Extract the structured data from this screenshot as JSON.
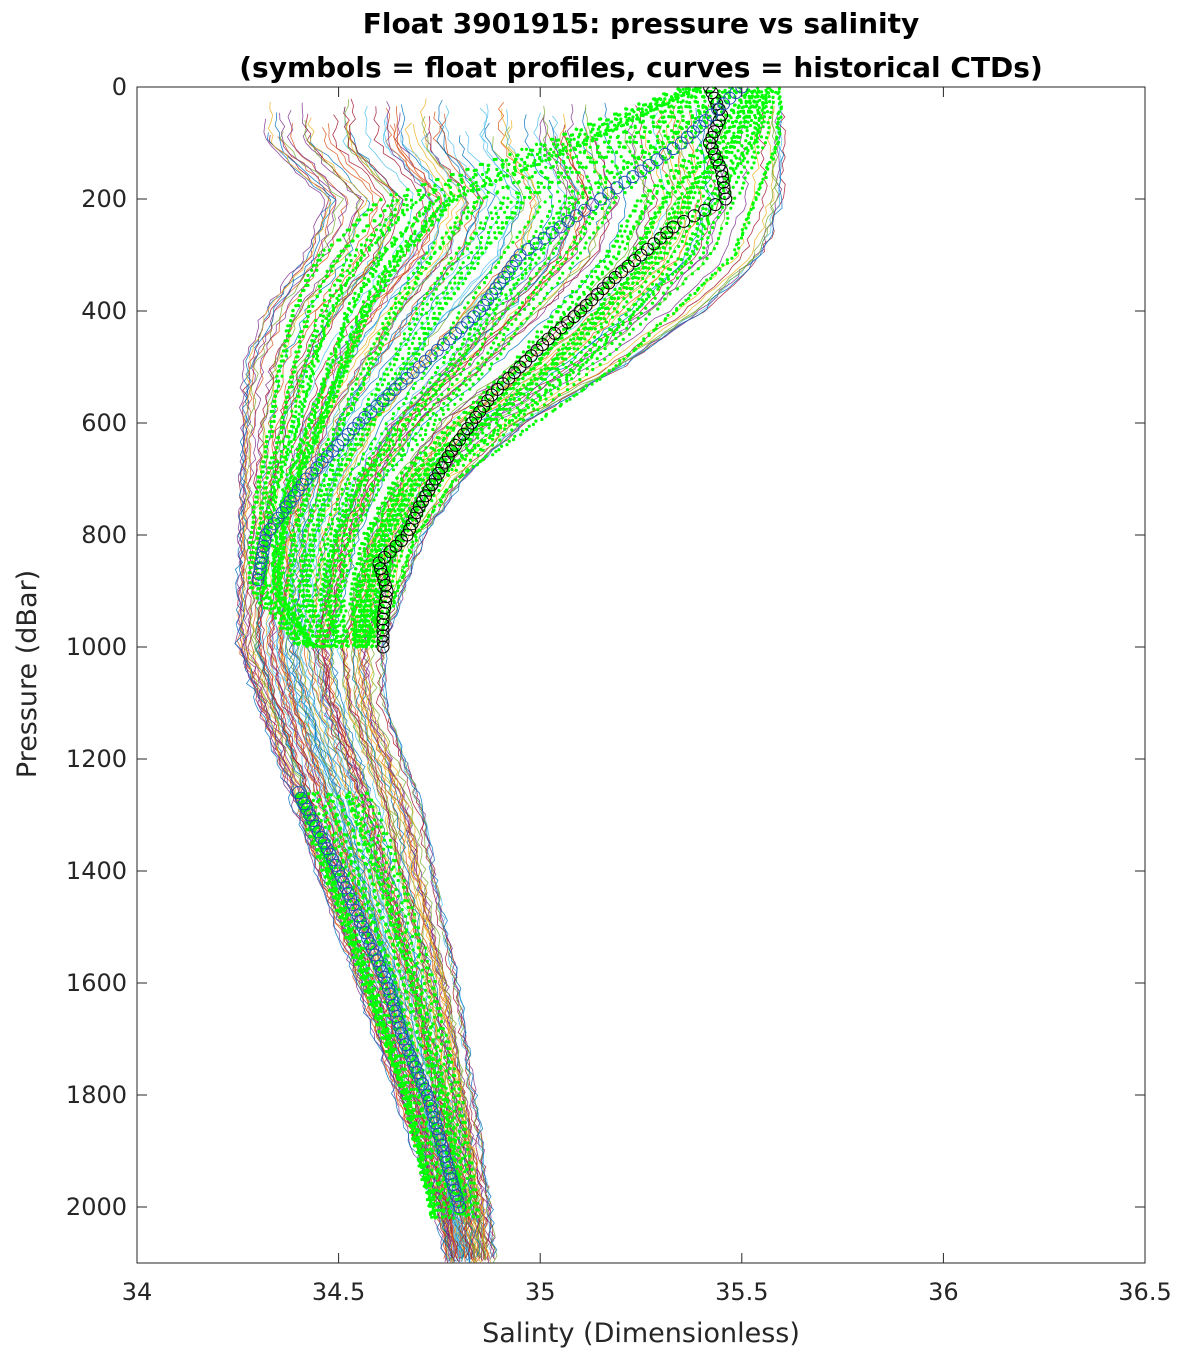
{
  "chart_data": {
    "type": "line",
    "title": "Float 3901915: pressure vs salinity",
    "subtitle": "(symbols = float profiles, curves = historical CTDs)",
    "xlabel": "Salinty (Dimensionless)",
    "ylabel": "Pressure (dBar)",
    "xlim": [
      34,
      36.5
    ],
    "ylim": [
      0,
      2100
    ],
    "y_reversed": true,
    "grid": false,
    "x_ticks": [
      34,
      34.5,
      35,
      35.5,
      36,
      36.5
    ],
    "x_tick_labels": [
      "34",
      "34.5",
      "35",
      "35.5",
      "36",
      "36.5"
    ],
    "y_ticks": [
      0,
      200,
      400,
      600,
      800,
      1000,
      1200,
      1400,
      1600,
      1800,
      2000
    ],
    "y_tick_labels": [
      "0",
      "200",
      "400",
      "600",
      "800",
      "1000",
      "1200",
      "1400",
      "1600",
      "1800",
      "2000"
    ],
    "colors": {
      "float_points": "#00ff00",
      "float_marker_edge": "#000000",
      "axis": "#262626",
      "ctd_palette": [
        "#0072bd",
        "#d95319",
        "#edb120",
        "#7e2f8e",
        "#77ac30",
        "#4dbeee",
        "#a2142f"
      ]
    },
    "ctd_envelope": {
      "pressure": [
        0,
        100,
        200,
        300,
        400,
        500,
        600,
        700,
        800,
        900,
        1000,
        1100,
        1200,
        1300,
        1400,
        1500,
        1600,
        1700,
        1800,
        1900,
        2000,
        2100
      ],
      "salinity_min": [
        34.3,
        34.3,
        34.45,
        34.4,
        34.3,
        34.25,
        34.25,
        34.25,
        34.25,
        34.25,
        34.25,
        34.3,
        34.35,
        34.4,
        34.45,
        34.5,
        34.55,
        34.6,
        34.65,
        34.7,
        34.75,
        34.78
      ],
      "salinity_max": [
        35.6,
        35.6,
        35.6,
        35.55,
        35.4,
        35.2,
        34.95,
        34.8,
        34.7,
        34.65,
        34.6,
        34.6,
        34.65,
        34.7,
        34.72,
        34.75,
        34.78,
        34.8,
        34.82,
        34.84,
        34.86,
        34.87
      ]
    },
    "float_envelope": {
      "pressure": [
        0,
        100,
        200,
        300,
        400,
        500,
        600,
        700,
        800,
        900,
        1000
      ],
      "salinity_min": [
        35.35,
        35.0,
        34.6,
        34.45,
        34.38,
        34.35,
        34.33,
        34.3,
        34.28,
        34.28,
        34.4
      ],
      "salinity_max": [
        35.6,
        35.6,
        35.55,
        35.5,
        35.35,
        35.2,
        35.0,
        34.8,
        34.7,
        34.65,
        34.6
      ]
    },
    "float_deep": {
      "pressure": [
        1260,
        1400,
        1600,
        1800,
        2000
      ],
      "salinity_min": [
        34.38,
        34.45,
        34.55,
        34.65,
        34.72
      ],
      "salinity_max": [
        34.6,
        34.68,
        34.76,
        34.82,
        34.86
      ]
    },
    "highlight_profiles": [
      {
        "pressure": [
          0,
          50,
          100,
          150,
          200,
          250,
          300,
          350,
          400,
          450,
          500,
          550,
          600,
          650,
          700,
          750,
          800,
          850,
          900,
          950,
          1000
        ],
        "salinity": [
          35.42,
          35.45,
          35.42,
          35.45,
          35.46,
          35.33,
          35.25,
          35.17,
          35.1,
          35.02,
          34.95,
          34.88,
          34.83,
          34.78,
          34.74,
          34.7,
          34.67,
          34.6,
          34.62,
          34.61,
          34.61
        ]
      },
      {
        "pressure": [
          0,
          100,
          200,
          300,
          400,
          500,
          600,
          700,
          800,
          880
        ],
        "salinity": [
          35.5,
          35.35,
          35.15,
          34.95,
          34.85,
          34.7,
          34.55,
          34.42,
          34.32,
          34.3
        ]
      },
      {
        "pressure": [
          1260,
          1400,
          1500,
          1600,
          1700,
          1800,
          1900,
          2000
        ],
        "salinity": [
          34.4,
          34.5,
          34.56,
          34.62,
          34.66,
          34.72,
          34.76,
          34.8
        ]
      }
    ]
  }
}
